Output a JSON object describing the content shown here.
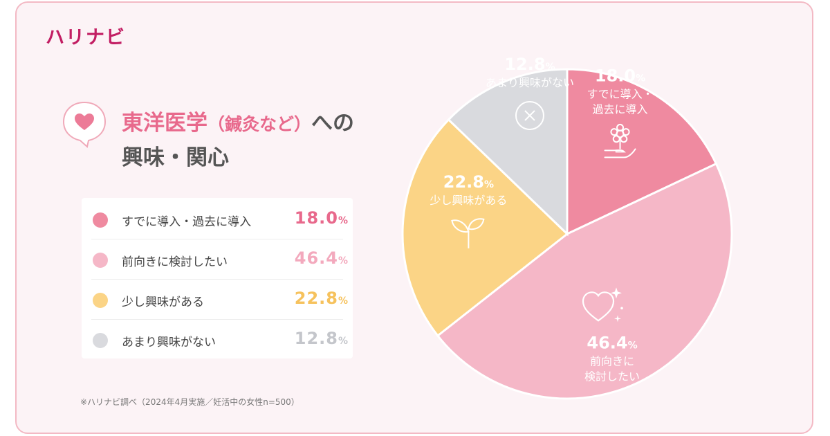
{
  "brand": "ハリナビ",
  "title": {
    "accent": "東洋医学",
    "paren": "（鍼灸など）",
    "rest": "への",
    "line2": "興味・関心"
  },
  "icons": {
    "title_bubble": "heart-speech-bubble-icon",
    "slice_0": "flower-in-hand-icon",
    "slice_1": "heart-sparkle-icon",
    "slice_2": "sprout-icon",
    "slice_3": "circle-x-icon"
  },
  "legend": [
    {
      "label": "すでに導入・過去に導入",
      "value": "18.0",
      "pct": "%",
      "color": "#ef8aa0",
      "value_color": "#e8698c"
    },
    {
      "label": "前向きに検討したい",
      "value": "46.4",
      "pct": "%",
      "color": "#f5b7c7",
      "value_color": "#f3a9bd"
    },
    {
      "label": "少し興味がある",
      "value": "22.8",
      "pct": "%",
      "color": "#fbd486",
      "value_color": "#f6c25d"
    },
    {
      "label": "あまり興味がない",
      "value": "12.8",
      "pct": "%",
      "color": "#d9dade",
      "value_color": "#c4c6cb"
    }
  ],
  "note": "※ハリナビ調べ（2024年4月実施／妊活中の女性n=500）",
  "chart_data": {
    "type": "pie",
    "start_angle_deg": 0,
    "direction": "clockwise",
    "slices": [
      {
        "label": "すでに導入・過去に導入",
        "label_lines": [
          "すでに導入・",
          "過去に導入"
        ],
        "value": 18.0,
        "value_text": "18.0",
        "pct": "%",
        "color": "#ef8aa0",
        "icon": "flower-in-hand-icon"
      },
      {
        "label": "前向きに検討したい",
        "label_lines": [
          "前向きに",
          "検討したい"
        ],
        "value": 46.4,
        "value_text": "46.4",
        "pct": "%",
        "color": "#f5b7c7",
        "icon": "heart-sparkle-icon"
      },
      {
        "label": "少し興味がある",
        "label_lines": [
          "少し興味がある"
        ],
        "value": 22.8,
        "value_text": "22.8",
        "pct": "%",
        "color": "#fbd486",
        "icon": "sprout-icon"
      },
      {
        "label": "あまり興味がない",
        "label_lines": [
          "あまり興味がない"
        ],
        "value": 12.8,
        "value_text": "12.8",
        "pct": "%",
        "color": "#d9dade",
        "icon": "circle-x-icon"
      }
    ]
  }
}
